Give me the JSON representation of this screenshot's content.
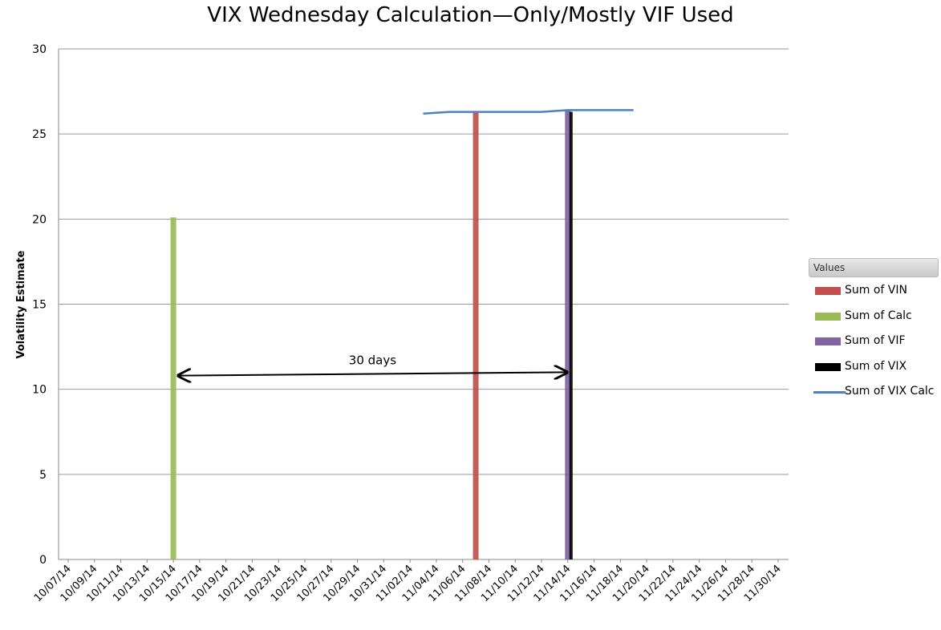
{
  "chart_data": {
    "type": "bar",
    "title": "VIX Wednesday Calculation—Only/Mostly VIF Used",
    "ylabel": "Volatility Estimate",
    "xlabel": "",
    "ylim": [
      0,
      30
    ],
    "yticks": [
      0,
      5,
      10,
      15,
      20,
      25,
      30
    ],
    "grid": true,
    "legend_title": "Values",
    "legend_position": "right",
    "categories": [
      "10/07/14",
      "10/09/14",
      "10/11/14",
      "10/13/14",
      "10/15/14",
      "10/17/14",
      "10/19/14",
      "10/21/14",
      "10/23/14",
      "10/25/14",
      "10/27/14",
      "10/29/14",
      "10/31/14",
      "11/02/14",
      "11/04/14",
      "11/06/14",
      "11/08/14",
      "11/10/14",
      "11/12/14",
      "11/14/14",
      "11/16/14",
      "11/18/14",
      "11/20/14",
      "11/22/14",
      "11/24/14",
      "11/26/14",
      "11/28/14",
      "11/30/14"
    ],
    "series": [
      {
        "name": "Sum of VIN",
        "kind": "bar",
        "color": "#c0504d",
        "points": [
          {
            "date": "11/07/14",
            "value": 26.3
          }
        ]
      },
      {
        "name": "Sum of Calc",
        "kind": "bar",
        "color": "#9bbb59",
        "points": [
          {
            "date": "10/15/14",
            "value": 20.1
          }
        ]
      },
      {
        "name": "Sum of VIF",
        "kind": "bar",
        "color": "#8064a2",
        "points": [
          {
            "date": "11/14/14",
            "value": 26.4
          }
        ]
      },
      {
        "name": "Sum of VIX",
        "kind": "bar",
        "color": "#000000",
        "points": [
          {
            "date": "11/14/14",
            "value": 26.3
          }
        ]
      },
      {
        "name": "Sum of VIX Calc",
        "kind": "line",
        "color": "#4f81bd",
        "points": [
          {
            "date": "11/03/14",
            "value": 26.2
          },
          {
            "date": "11/05/14",
            "value": 26.3
          },
          {
            "date": "11/08/14",
            "value": 26.3
          },
          {
            "date": "11/12/14",
            "value": 26.3
          },
          {
            "date": "11/14/14",
            "value": 26.4
          },
          {
            "date": "11/17/14",
            "value": 26.4
          },
          {
            "date": "11/19/14",
            "value": 26.4
          }
        ]
      }
    ],
    "annotations": [
      {
        "text": "30 days",
        "from_date": "10/15/14",
        "to_date": "11/14/14",
        "from_value": 10.8,
        "to_value": 11.0
      }
    ]
  }
}
